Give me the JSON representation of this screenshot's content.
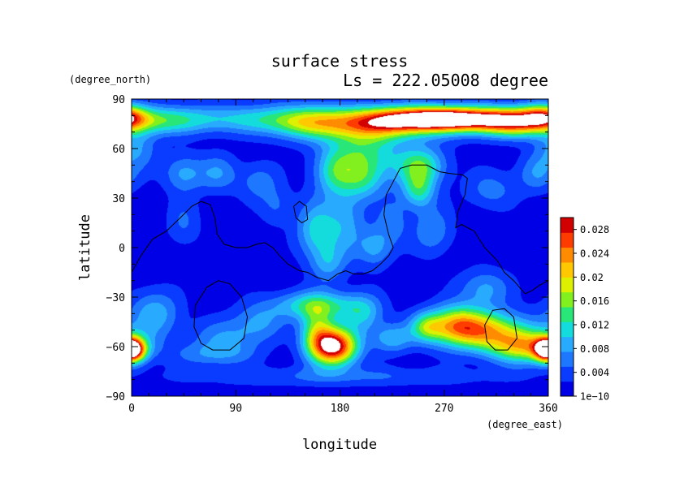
{
  "chart_data": {
    "type": "heatmap",
    "title": "surface stress",
    "subtitle": "Ls = 222.05008 degree",
    "xlabel": "longitude",
    "ylabel": "latitude",
    "x_unit": "(degree_east)",
    "y_unit": "(degree_north)",
    "xlim": [
      0,
      360
    ],
    "ylim": [
      -90,
      90
    ],
    "x_ticks": [
      "0",
      "90",
      "180",
      "270",
      "360"
    ],
    "y_ticks": [
      "90",
      "60",
      "30",
      "0",
      "−30",
      "−60",
      "−90"
    ],
    "colorbar": {
      "range": [
        0,
        0.03
      ],
      "tick_values": [
        0,
        0.004,
        0.008,
        0.012,
        0.016,
        0.02,
        0.024,
        0.028
      ],
      "tick_labels": [
        "1e−10",
        "0.004",
        "0.008",
        "0.012",
        "0.016",
        "0.02",
        "0.024",
        "0.028"
      ],
      "colors": [
        "#0000e6",
        "#0a3cff",
        "#1e78ff",
        "#28aaff",
        "#14dcdc",
        "#28e678",
        "#82f01e",
        "#dcf000",
        "#ffc800",
        "#ff8c00",
        "#ff3c00",
        "#d20000"
      ],
      "above_max_color": "#ffffff"
    },
    "features": [
      {
        "lon": 270,
        "lat": 78,
        "sx": 38,
        "sy": 5,
        "value": 0.034
      },
      {
        "lon": 210,
        "lat": 75,
        "sx": 40,
        "sy": 7,
        "value": 0.018
      },
      {
        "lon": 330,
        "lat": 76,
        "sx": 25,
        "sy": 6,
        "value": 0.02
      },
      {
        "lon": 355,
        "lat": 80,
        "sx": 12,
        "sy": 5,
        "value": 0.012
      },
      {
        "lon": 150,
        "lat": 76,
        "sx": 25,
        "sy": 7,
        "value": 0.01
      },
      {
        "lon": 95,
        "lat": 78,
        "sx": 45,
        "sy": 6,
        "value": 0.008
      },
      {
        "lon": 20,
        "lat": 77,
        "sx": 30,
        "sy": 6,
        "value": 0.01
      },
      {
        "lon": 5,
        "lat": 60,
        "sx": 12,
        "sy": 8,
        "value": 0.006
      },
      {
        "lon": 200,
        "lat": 55,
        "sx": 22,
        "sy": 12,
        "value": 0.012
      },
      {
        "lon": 175,
        "lat": 45,
        "sx": 12,
        "sy": 10,
        "value": 0.008
      },
      {
        "lon": 250,
        "lat": 50,
        "sx": 15,
        "sy": 8,
        "value": 0.012
      },
      {
        "lon": 248,
        "lat": 35,
        "sx": 10,
        "sy": 8,
        "value": 0.011
      },
      {
        "lon": 260,
        "lat": 10,
        "sx": 12,
        "sy": 10,
        "value": 0.006
      },
      {
        "lon": 45,
        "lat": 45,
        "sx": 12,
        "sy": 8,
        "value": 0.007
      },
      {
        "lon": 75,
        "lat": 45,
        "sx": 12,
        "sy": 8,
        "value": 0.006
      },
      {
        "lon": 110,
        "lat": 40,
        "sx": 12,
        "sy": 8,
        "value": 0.005
      },
      {
        "lon": 200,
        "lat": 40,
        "sx": 12,
        "sy": 8,
        "value": 0.006
      },
      {
        "lon": 310,
        "lat": 35,
        "sx": 15,
        "sy": 8,
        "value": 0.005
      },
      {
        "lon": 350,
        "lat": 45,
        "sx": 12,
        "sy": 8,
        "value": 0.006
      },
      {
        "lon": 160,
        "lat": 10,
        "sx": 12,
        "sy": 12,
        "value": 0.01
      },
      {
        "lon": 185,
        "lat": 15,
        "sx": 12,
        "sy": 15,
        "value": 0.007
      },
      {
        "lon": 170,
        "lat": -10,
        "sx": 10,
        "sy": 8,
        "value": 0.006
      },
      {
        "lon": 210,
        "lat": 0,
        "sx": 10,
        "sy": 8,
        "value": 0.007
      },
      {
        "lon": 225,
        "lat": 15,
        "sx": 10,
        "sy": 10,
        "value": 0.005
      },
      {
        "lon": 305,
        "lat": -25,
        "sx": 15,
        "sy": 8,
        "value": 0.007
      },
      {
        "lon": 45,
        "lat": 15,
        "sx": 10,
        "sy": 10,
        "value": 0.004
      },
      {
        "lon": 125,
        "lat": 25,
        "sx": 10,
        "sy": 8,
        "value": 0.004
      },
      {
        "lon": 160,
        "lat": -35,
        "sx": 25,
        "sy": 6,
        "value": 0.012
      },
      {
        "lon": 175,
        "lat": -60,
        "sx": 14,
        "sy": 8,
        "value": 0.03
      },
      {
        "lon": 160,
        "lat": -50,
        "sx": 10,
        "sy": 10,
        "value": 0.012
      },
      {
        "lon": 225,
        "lat": -55,
        "sx": 12,
        "sy": 6,
        "value": 0.008
      },
      {
        "lon": 200,
        "lat": -40,
        "sx": 12,
        "sy": 8,
        "value": 0.008
      },
      {
        "lon": 255,
        "lat": -48,
        "sx": 10,
        "sy": 6,
        "value": 0.01
      },
      {
        "lon": 300,
        "lat": -50,
        "sx": 28,
        "sy": 8,
        "value": 0.02
      },
      {
        "lon": 340,
        "lat": -60,
        "sx": 22,
        "sy": 7,
        "value": 0.018
      },
      {
        "lon": 280,
        "lat": -45,
        "sx": 15,
        "sy": 8,
        "value": 0.01
      },
      {
        "lon": 0,
        "lat": -62,
        "sx": 8,
        "sy": 5,
        "value": 0.016
      },
      {
        "lon": 360,
        "lat": -62,
        "sx": 8,
        "sy": 5,
        "value": 0.016
      },
      {
        "lon": 20,
        "lat": -40,
        "sx": 15,
        "sy": 10,
        "value": 0.008
      },
      {
        "lon": 80,
        "lat": -55,
        "sx": 20,
        "sy": 8,
        "value": 0.006
      },
      {
        "lon": 70,
        "lat": -65,
        "sx": 25,
        "sy": 5,
        "value": 0.005
      },
      {
        "lon": 110,
        "lat": -45,
        "sx": 15,
        "sy": 8,
        "value": 0.006
      },
      {
        "lon": 180,
        "lat": -78,
        "sx": 100,
        "sy": 4,
        "value": 0.004
      }
    ],
    "topography_contours": [
      [
        [
          0,
          -15
        ],
        [
          8,
          -5
        ],
        [
          18,
          5
        ],
        [
          30,
          10
        ],
        [
          42,
          18
        ],
        [
          52,
          25
        ],
        [
          60,
          28
        ],
        [
          68,
          26
        ],
        [
          72,
          18
        ],
        [
          74,
          8
        ],
        [
          80,
          2
        ],
        [
          90,
          0
        ],
        [
          100,
          0
        ],
        [
          108,
          2
        ],
        [
          115,
          3
        ],
        [
          122,
          0
        ],
        [
          128,
          -5
        ],
        [
          135,
          -10
        ],
        [
          145,
          -14
        ],
        [
          152,
          -15
        ],
        [
          160,
          -18
        ],
        [
          170,
          -20
        ],
        [
          178,
          -16
        ],
        [
          185,
          -14
        ],
        [
          192,
          -16
        ],
        [
          200,
          -16
        ],
        [
          208,
          -14
        ],
        [
          215,
          -10
        ],
        [
          222,
          -5
        ],
        [
          226,
          0
        ],
        [
          222,
          8
        ],
        [
          218,
          20
        ],
        [
          220,
          32
        ],
        [
          226,
          40
        ],
        [
          232,
          48
        ],
        [
          242,
          50
        ],
        [
          255,
          50
        ],
        [
          266,
          46
        ],
        [
          274,
          45
        ],
        [
          286,
          44
        ],
        [
          290,
          42
        ],
        [
          288,
          32
        ],
        [
          282,
          22
        ],
        [
          280,
          12
        ],
        [
          285,
          14
        ],
        [
          296,
          10
        ],
        [
          305,
          0
        ],
        [
          316,
          -8
        ],
        [
          322,
          -15
        ],
        [
          330,
          -20
        ],
        [
          340,
          -28
        ],
        [
          346,
          -26
        ],
        [
          352,
          -23
        ],
        [
          360,
          -20
        ]
      ],
      [
        [
          140,
          25
        ],
        [
          145,
          28
        ],
        [
          151,
          25
        ],
        [
          152,
          17
        ],
        [
          147,
          15
        ],
        [
          142,
          18
        ],
        [
          140,
          25
        ]
      ],
      [
        [
          55,
          -35
        ],
        [
          65,
          -24
        ],
        [
          75,
          -20
        ],
        [
          85,
          -22
        ],
        [
          95,
          -30
        ],
        [
          100,
          -42
        ],
        [
          97,
          -55
        ],
        [
          85,
          -62
        ],
        [
          70,
          -62
        ],
        [
          60,
          -58
        ],
        [
          54,
          -48
        ],
        [
          55,
          -35
        ]
      ],
      [
        [
          305,
          -47
        ],
        [
          312,
          -38
        ],
        [
          322,
          -37
        ],
        [
          330,
          -42
        ],
        [
          333,
          -55
        ],
        [
          325,
          -62
        ],
        [
          314,
          -62
        ],
        [
          307,
          -57
        ],
        [
          305,
          -47
        ]
      ]
    ]
  }
}
